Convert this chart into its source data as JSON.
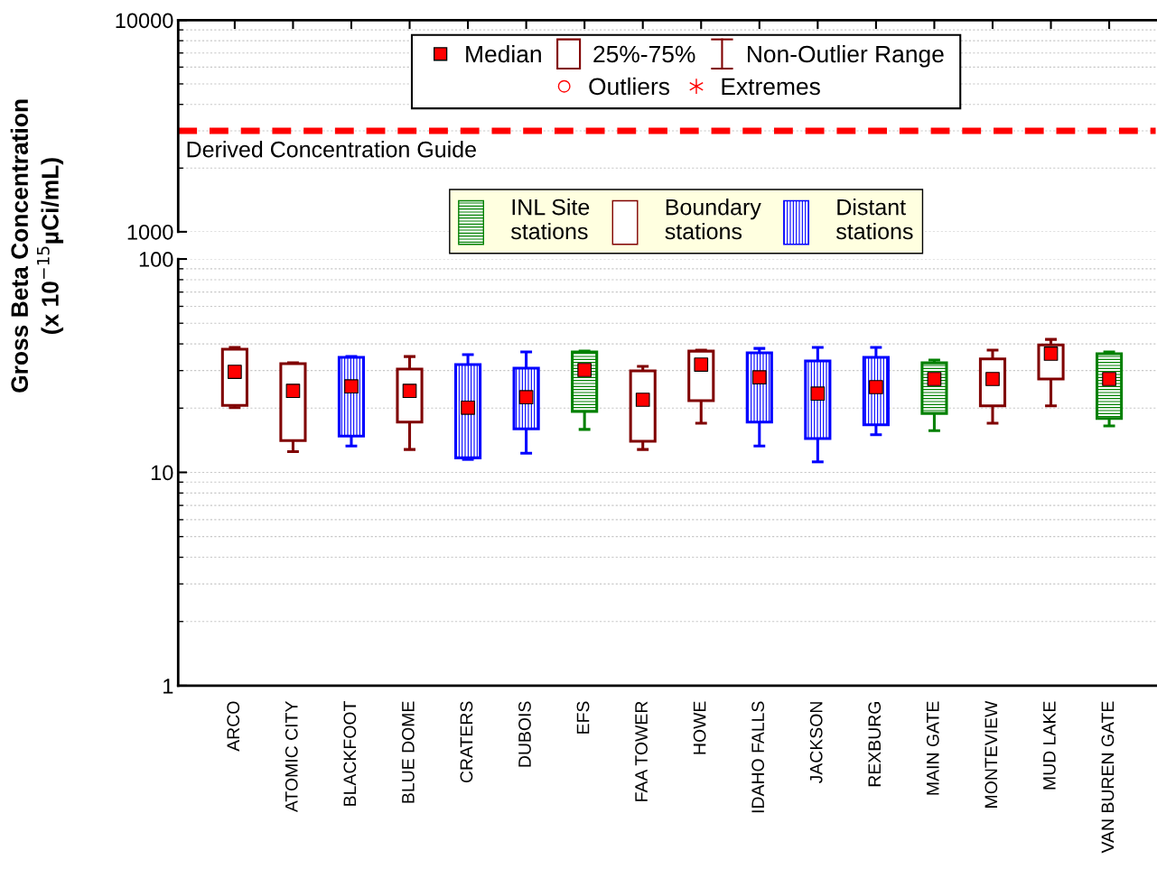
{
  "chart_data": [
    {
      "type": "line",
      "categories": [
        null,
        null,
        null,
        null,
        null,
        null,
        null,
        null,
        null,
        null,
        null,
        null,
        null,
        null,
        null,
        null
      ],
      "log": true,
      "ylim": [
        1000,
        10000
      ],
      "yticks": [
        1000,
        10000
      ],
      "grid": "y",
      "tick_labels": "y",
      "ref_lines": [
        {
          "axis": "y",
          "value": 3000,
          "label": "Derived Concentration Guide",
          "color": "#ff0000",
          "line_style": "dashed"
        }
      ],
      "annotations": [
        "Median",
        "25%-75%",
        "Non-Outlier Range",
        "Outliers",
        "Extremes"
      ]
    },
    {
      "type": "box",
      "categories": [
        "ARCO",
        "ATOMIC CITY",
        "BLACKFOOT",
        "BLUE DOME",
        "CRATERS",
        "DUBOIS",
        "EFS",
        "FAA TOWER",
        "HOWE",
        "IDAHO FALLS",
        "JACKSON",
        "REXBURG",
        "MAIN GATE",
        "MONTEVIEW",
        "MUD LAKE",
        "VAN BUREN GATE"
      ],
      "ylabel": "Gross Beta Concentration\n(x 10$^{−15}$µCi/mL)",
      "log": true,
      "ylim": [
        1,
        100
      ],
      "yticks": [
        1,
        10,
        100
      ],
      "grid": "y",
      "legend": "top",
      "series": [
        {
          "name": "INL Site stations",
          "color": "#008000",
          "boxes": [
            null,
            null,
            null,
            null,
            null,
            null,
            {
              "low": 15.9,
              "q1": 19.3,
              "median": 30.2,
              "q3": 36.7,
              "high": 37.0
            },
            null,
            null,
            null,
            null,
            null,
            {
              "low": 15.7,
              "q1": 18.9,
              "median": 27.4,
              "q3": 32.6,
              "high": 33.6
            },
            null,
            null,
            {
              "low": 16.5,
              "q1": 17.9,
              "median": 27.4,
              "q3": 36.0,
              "high": 36.7
            }
          ]
        },
        {
          "name": "Boundary stations",
          "color": "#800000",
          "boxes": [
            {
              "low": 20.1,
              "q1": 20.6,
              "median": 29.6,
              "q3": 37.8,
              "high": 38.5
            },
            {
              "low": 12.5,
              "q1": 14.1,
              "median": 24.1,
              "q3": 32.3,
              "high": 32.6
            },
            null,
            {
              "low": 12.8,
              "q1": 17.2,
              "median": 24.1,
              "q3": 30.5,
              "high": 34.9
            },
            null,
            null,
            null,
            {
              "low": 12.8,
              "q1": 14.0,
              "median": 21.9,
              "q3": 29.9,
              "high": 31.4
            },
            {
              "low": 17.0,
              "q1": 21.7,
              "median": 32.0,
              "q3": 37.0,
              "high": 37.4
            },
            null,
            null,
            null,
            null,
            {
              "low": 17.0,
              "q1": 20.5,
              "median": 27.4,
              "q3": 34.0,
              "high": 37.4
            },
            {
              "low": 20.5,
              "q1": 27.4,
              "median": 36.0,
              "q3": 39.6,
              "high": 42.0
            },
            null
          ]
        },
        {
          "name": "Distant stations",
          "color": "#0000ff",
          "boxes": [
            null,
            null,
            {
              "low": 13.3,
              "q1": 14.8,
              "median": 25.3,
              "q3": 34.6,
              "high": 34.9
            },
            null,
            {
              "low": 11.5,
              "q1": 11.7,
              "median": 20.1,
              "q3": 32.0,
              "high": 35.6
            },
            {
              "low": 12.3,
              "q1": 16.0,
              "median": 22.5,
              "q3": 30.8,
              "high": 36.7
            },
            null,
            null,
            null,
            {
              "low": 13.3,
              "q1": 17.2,
              "median": 27.9,
              "q3": 36.3,
              "high": 38.1
            },
            {
              "low": 11.2,
              "q1": 14.4,
              "median": 23.4,
              "q3": 33.3,
              "high": 38.5
            },
            {
              "low": 15.0,
              "q1": 16.7,
              "median": 25.1,
              "q3": 34.6,
              "high": 38.5
            },
            null,
            null,
            null,
            null
          ]
        }
      ]
    }
  ]
}
